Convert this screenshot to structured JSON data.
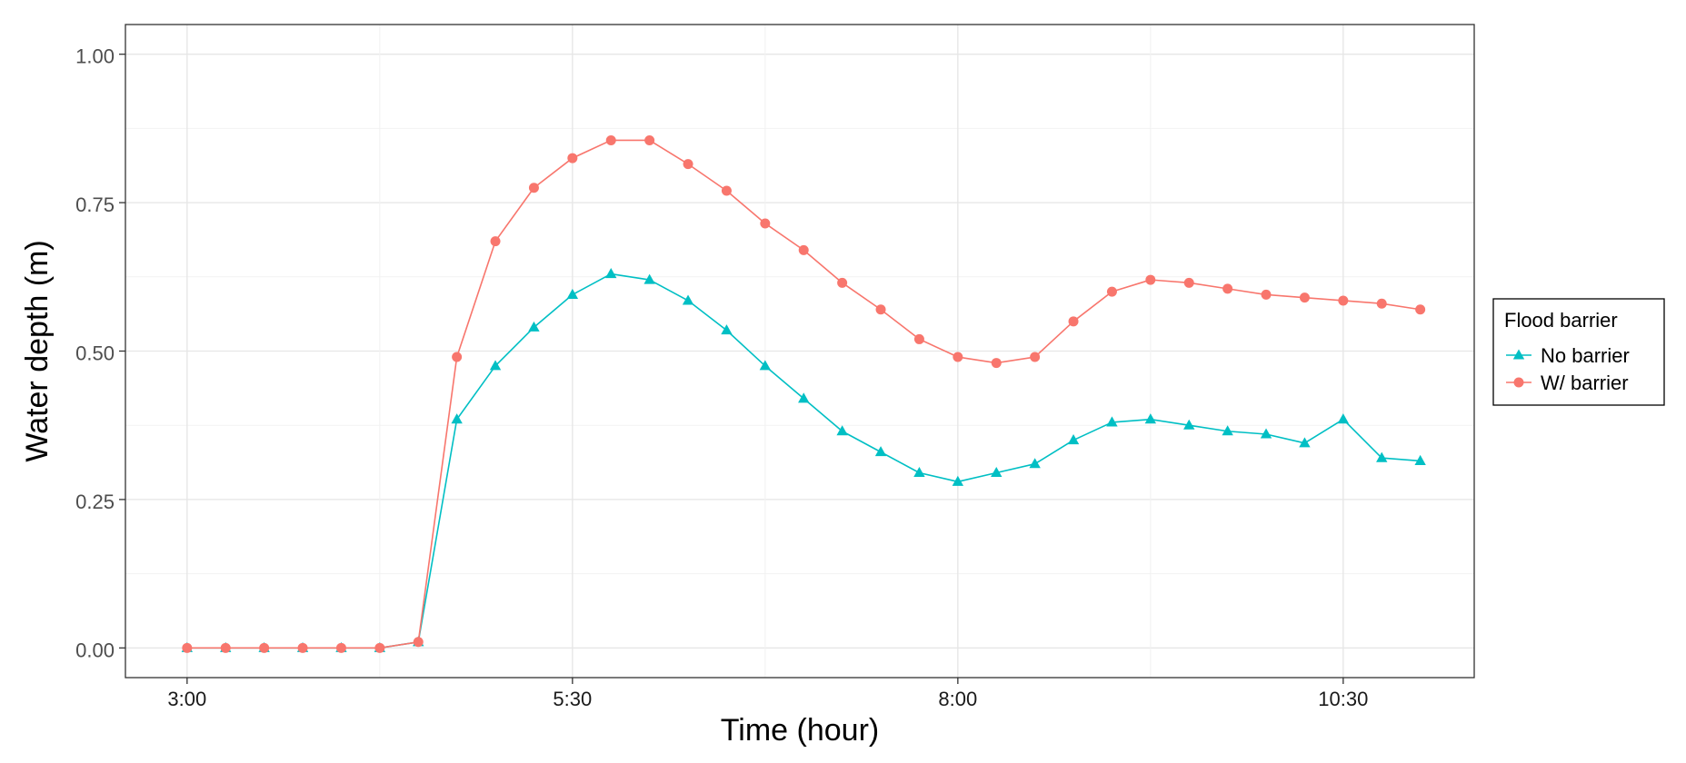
{
  "chart_data": {
    "type": "line",
    "xlabel": "Time (hour)",
    "ylabel": "Water depth (m)",
    "x_unit": "hour",
    "x_ticks": [
      {
        "label": "3:00",
        "value": 3.0
      },
      {
        "label": "5:30",
        "value": 5.5
      },
      {
        "label": "8:00",
        "value": 8.0
      },
      {
        "label": "10:30",
        "value": 10.5
      }
    ],
    "xlim": [
      2.6,
      11.35
    ],
    "y_ticks": [
      "0.00",
      "0.25",
      "0.50",
      "0.75",
      "1.00"
    ],
    "ylim": [
      -0.05,
      1.05
    ],
    "grid": true,
    "legend": {
      "title": "Flood barrier",
      "position": "right"
    },
    "x": [
      3.0,
      3.25,
      3.5,
      3.75,
      4.0,
      4.25,
      4.5,
      4.75,
      5.0,
      5.25,
      5.5,
      5.75,
      6.0,
      6.25,
      6.5,
      6.75,
      7.0,
      7.25,
      7.5,
      7.75,
      8.0,
      8.25,
      8.5,
      8.75,
      9.0,
      9.25,
      9.5,
      9.75,
      10.0,
      10.25,
      10.5,
      10.75,
      11.0
    ],
    "series": [
      {
        "name": "No barrier",
        "color": "#00BFC4",
        "marker": "triangle",
        "values": [
          0.0,
          0.0,
          0.0,
          0.0,
          0.0,
          0.0,
          0.01,
          0.385,
          0.475,
          0.54,
          0.595,
          0.63,
          0.62,
          0.585,
          0.535,
          0.475,
          0.42,
          0.365,
          0.33,
          0.295,
          0.28,
          0.295,
          0.31,
          0.35,
          0.38,
          0.385,
          0.375,
          0.365,
          0.36,
          0.345,
          0.385,
          0.32,
          0.315
        ]
      },
      {
        "name": "W/ barrier",
        "color": "#F8766D",
        "marker": "circle",
        "values": [
          0.0,
          0.0,
          0.0,
          0.0,
          0.0,
          0.0,
          0.01,
          0.49,
          0.685,
          0.775,
          0.825,
          0.855,
          0.855,
          0.815,
          0.77,
          0.715,
          0.67,
          0.615,
          0.57,
          0.52,
          0.49,
          0.48,
          0.49,
          0.55,
          0.6,
          0.62,
          0.615,
          0.605,
          0.595,
          0.59,
          0.585,
          0.58,
          0.57
        ]
      }
    ]
  }
}
